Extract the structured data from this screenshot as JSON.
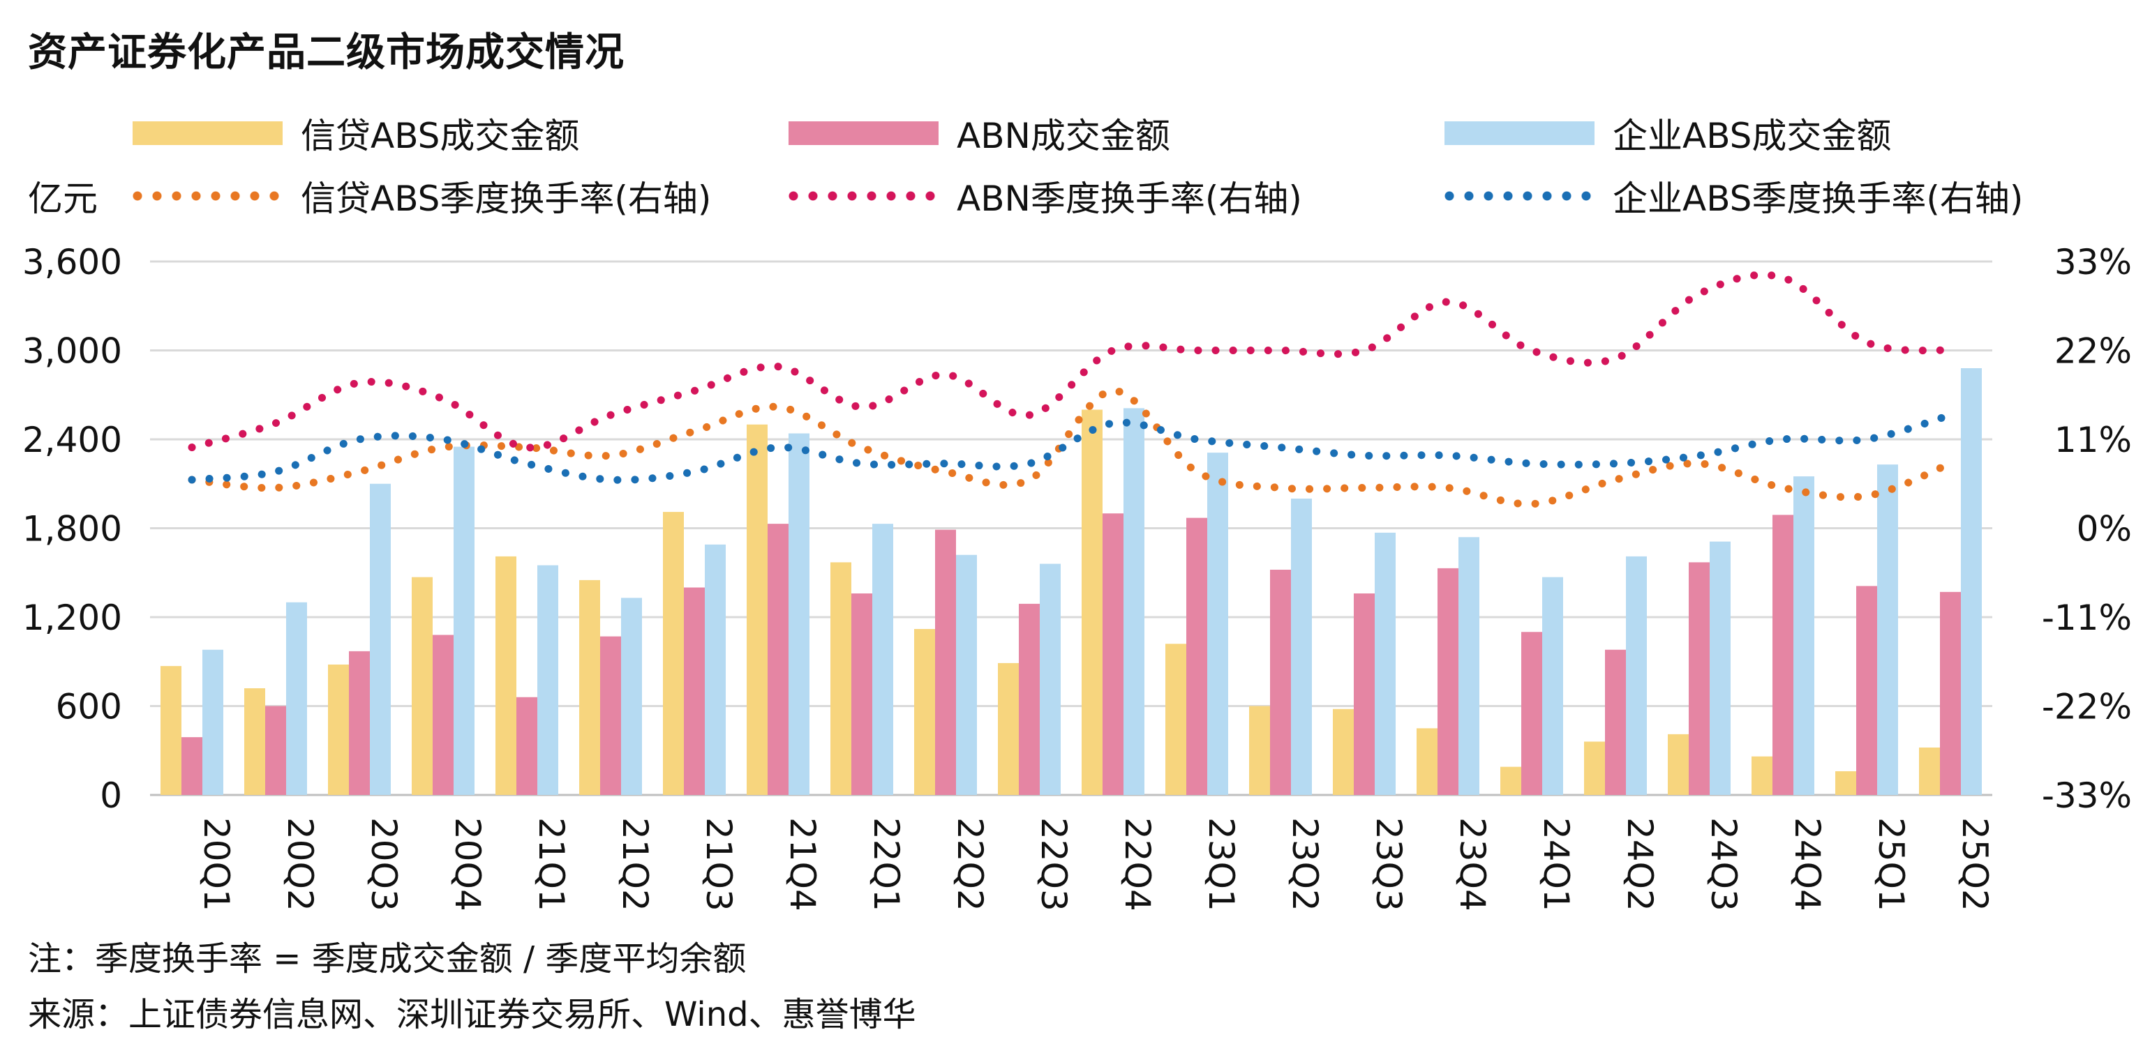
{
  "title": "资产证券化产品二级市场成交情况",
  "unit": "亿元",
  "legend": {
    "credit_bar": "信贷ABS成交金额",
    "abn_bar": "ABN成交金额",
    "corp_bar": "企业ABS成交金额",
    "credit_line": "信贷ABS季度换手率(右轴)",
    "abn_line": "ABN季度换手率(右轴)",
    "corp_line": "企业ABS季度换手率(右轴)"
  },
  "colors": {
    "credit_bar": "#F7D57E",
    "abn_bar": "#E585A3",
    "corp_bar": "#B5DAF2",
    "credit_line": "#E87722",
    "abn_line": "#D4145A",
    "corp_line": "#1A6FB5"
  },
  "notes": {
    "note": "注：季度换手率 = 季度成交金额 / 季度平均余额",
    "source": "来源：上证债券信息网、深圳证券交易所、Wind、惠誉博华"
  },
  "chart_data": {
    "type": "bar",
    "categories": [
      "20Q1",
      "20Q2",
      "20Q3",
      "20Q4",
      "21Q1",
      "21Q2",
      "21Q3",
      "21Q4",
      "22Q1",
      "22Q2",
      "22Q3",
      "22Q4",
      "23Q1",
      "23Q2",
      "23Q3",
      "23Q4",
      "24Q1",
      "24Q2",
      "24Q3",
      "24Q4",
      "25Q1",
      "25Q2"
    ],
    "ylim": [
      0,
      3600
    ],
    "yticks": [
      0,
      600,
      1200,
      1800,
      2400,
      3000,
      3600
    ],
    "ytick_labels": [
      "0",
      "600",
      "1,200",
      "1,800",
      "2,400",
      "3,000",
      "3,600"
    ],
    "y2lim": [
      -33,
      33
    ],
    "y2ticks": [
      -33,
      -22,
      -11,
      0,
      11,
      22,
      33
    ],
    "y2tick_labels": [
      "-33%",
      "-22%",
      "-11%",
      "0%",
      "11%",
      "22%",
      "33%"
    ],
    "series": [
      {
        "name": "信贷ABS成交金额",
        "kind": "bar",
        "values": [
          870,
          720,
          880,
          1470,
          1610,
          1450,
          1910,
          2500,
          1570,
          1120,
          890,
          2600,
          1020,
          600,
          580,
          450,
          190,
          360,
          410,
          260,
          160,
          320
        ]
      },
      {
        "name": "ABN成交金额",
        "kind": "bar",
        "values": [
          390,
          600,
          970,
          1080,
          660,
          1070,
          1400,
          1830,
          1360,
          1790,
          1290,
          1900,
          1870,
          1520,
          1360,
          1530,
          1100,
          980,
          1570,
          1890,
          1410,
          1370
        ]
      },
      {
        "name": "企业ABS成交金额",
        "kind": "bar",
        "values": [
          980,
          1300,
          2100,
          2350,
          1550,
          1330,
          1690,
          2440,
          1830,
          1620,
          1560,
          2610,
          2310,
          2000,
          1770,
          1740,
          1470,
          1610,
          1710,
          2150,
          2230,
          2880
        ]
      },
      {
        "name": "信贷ABS季度换手率(右轴)",
        "kind": "line",
        "axis": "right",
        "values": [
          6,
          5,
          7,
          10,
          10,
          9,
          12,
          15,
          10,
          7,
          6,
          17,
          7,
          5,
          5,
          5,
          3,
          6,
          8,
          5,
          4,
          8
        ]
      },
      {
        "name": "ABN季度换手率(右轴)",
        "kind": "line",
        "axis": "right",
        "values": [
          10,
          13,
          18,
          16,
          10,
          14,
          17,
          20,
          15,
          19,
          14,
          22,
          22,
          22,
          22,
          28,
          22,
          21,
          29,
          31,
          23,
          22
        ]
      },
      {
        "name": "企业ABS季度换手率(右轴)",
        "kind": "line",
        "axis": "right",
        "values": [
          6,
          7,
          11,
          11,
          8,
          6,
          7,
          10,
          8,
          8,
          8,
          13,
          11,
          10,
          9,
          9,
          8,
          8,
          9,
          11,
          11,
          14
        ]
      }
    ]
  }
}
